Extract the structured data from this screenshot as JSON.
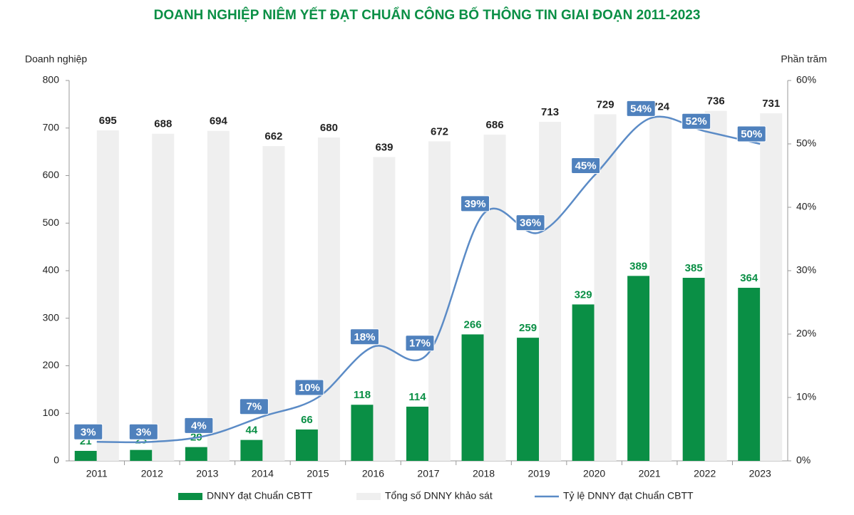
{
  "chart_data": {
    "type": "bar",
    "title": "DOANH NGHIỆP NIÊM YẾT ĐẠT CHUẨN CÔNG BỐ THÔNG TIN GIAI ĐOẠN 2011-2023",
    "y_label": "Doanh nghiệp",
    "y2_label": "Phần trăm",
    "categories": [
      "2011",
      "2012",
      "2013",
      "2014",
      "2015",
      "2016",
      "2017",
      "2018",
      "2019",
      "2020",
      "2021",
      "2022",
      "2023"
    ],
    "series": [
      {
        "name": "DNNY đạt Chuẩn CBTT",
        "type": "bar",
        "color": "#0a8f45",
        "values": [
          21,
          23,
          29,
          44,
          66,
          118,
          114,
          266,
          259,
          329,
          389,
          385,
          364
        ]
      },
      {
        "name": "Tổng số DNNY khảo sát",
        "type": "bar",
        "color": "#efefef",
        "values": [
          695,
          688,
          694,
          662,
          680,
          639,
          672,
          686,
          713,
          729,
          724,
          736,
          731
        ]
      },
      {
        "name": "Tỷ lệ DNNY đạt Chuẩn CBTT",
        "type": "line",
        "axis": "y2",
        "color": "#5b8bc6",
        "values": [
          3,
          3,
          4,
          7,
          10,
          18,
          17,
          39,
          36,
          45,
          54,
          52,
          50
        ],
        "value_labels": [
          "3%",
          "3%",
          "4%",
          "7%",
          "10%",
          "18%",
          "17%",
          "39%",
          "36%",
          "45%",
          "54%",
          "52%",
          "50%"
        ]
      }
    ],
    "ylim": [
      0,
      800
    ],
    "yticks": [
      0,
      100,
      200,
      300,
      400,
      500,
      600,
      700,
      800
    ],
    "y2lim": [
      0,
      60
    ],
    "y2ticks": [
      {
        "value": 0,
        "label": "0%"
      },
      {
        "value": 10,
        "label": "10%"
      },
      {
        "value": 20,
        "label": "20%"
      },
      {
        "value": 30,
        "label": "30%"
      },
      {
        "value": 40,
        "label": "40%"
      },
      {
        "value": 50,
        "label": "50%"
      },
      {
        "value": 60,
        "label": "60%"
      }
    ],
    "grid": false
  }
}
